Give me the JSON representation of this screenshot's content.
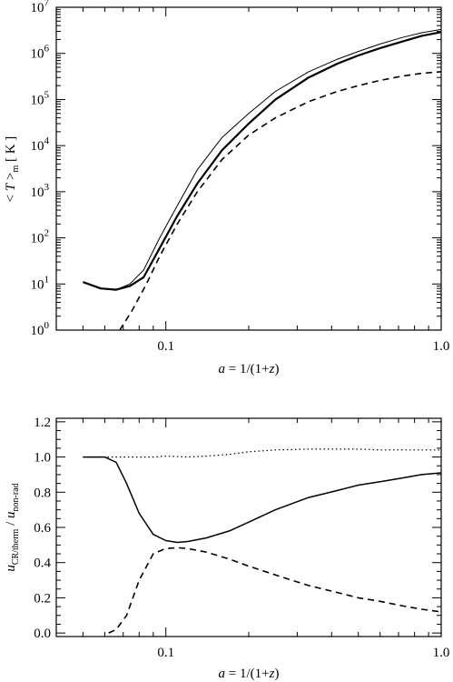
{
  "chart_data": [
    {
      "type": "line",
      "title": "",
      "xlabel": "a = 1/(1+z)",
      "ylabel": "<T>m [ K ]",
      "xscale": "log",
      "yscale": "log",
      "xlim": [
        0.04,
        1.0
      ],
      "ylim": [
        1,
        10000000
      ],
      "xticks": [
        0.1,
        1.0
      ],
      "xtick_labels": [
        "0.1",
        "1.0"
      ],
      "yticks": [
        1,
        10,
        100,
        1000,
        10000,
        100000,
        1000000,
        10000000
      ],
      "ytick_exponents": [
        "0",
        "1",
        "2",
        "3",
        "4",
        "5",
        "6",
        "7"
      ],
      "grid": false,
      "series": [
        {
          "style": "solid-thin",
          "x": [
            0.05,
            0.058,
            0.066,
            0.074,
            0.083,
            0.095,
            0.11,
            0.13,
            0.16,
            0.2,
            0.25,
            0.33,
            0.42,
            0.5,
            0.6,
            0.72,
            0.85,
            1.0
          ],
          "y": [
            11,
            8,
            7.5,
            10,
            20,
            100,
            500,
            3000,
            15000,
            50000,
            150000,
            400000,
            750000,
            1100000,
            1600000,
            2200000,
            2800000,
            3300000
          ]
        },
        {
          "style": "solid-thick",
          "x": [
            0.05,
            0.058,
            0.066,
            0.074,
            0.083,
            0.095,
            0.11,
            0.13,
            0.16,
            0.2,
            0.25,
            0.33,
            0.42,
            0.5,
            0.6,
            0.72,
            0.85,
            1.0
          ],
          "y": [
            11,
            8,
            7.5,
            9,
            14,
            60,
            300,
            1500,
            8000,
            30000,
            100000,
            300000,
            600000,
            900000,
            1300000,
            1800000,
            2400000,
            2900000
          ]
        },
        {
          "style": "dashed",
          "x": [
            0.068,
            0.075,
            0.085,
            0.095,
            0.11,
            0.13,
            0.16,
            0.2,
            0.25,
            0.33,
            0.42,
            0.5,
            0.6,
            0.72,
            0.85,
            1.0
          ],
          "y": [
            1,
            2.5,
            10,
            40,
            200,
            1000,
            5000,
            17000,
            40000,
            90000,
            150000,
            200000,
            260000,
            320000,
            370000,
            400000
          ]
        }
      ]
    },
    {
      "type": "line",
      "title": "",
      "xlabel": "a = 1/(1+z)",
      "ylabel": "uCR/therm / unon-rad",
      "xscale": "log",
      "yscale": "linear",
      "xlim": [
        0.04,
        1.0
      ],
      "ylim": [
        -0.02,
        1.22
      ],
      "xticks": [
        0.1,
        1.0
      ],
      "xtick_labels": [
        "0.1",
        "1.0"
      ],
      "yticks": [
        0.0,
        0.2,
        0.4,
        0.6,
        0.8,
        1.0,
        1.2
      ],
      "ytick_labels": [
        "0.0",
        "0.2",
        "0.4",
        "0.6",
        "0.8",
        "1.0",
        "1.2"
      ],
      "grid": false,
      "series": [
        {
          "style": "dotted",
          "x": [
            0.05,
            0.06,
            0.07,
            0.08,
            0.09,
            0.1,
            0.12,
            0.14,
            0.17,
            0.2,
            0.25,
            0.33,
            0.42,
            0.5,
            0.6,
            0.72,
            0.85,
            1.0
          ],
          "y": [
            1.0,
            1.0,
            1.0,
            1.0,
            1.0,
            1.005,
            1.0,
            1.005,
            1.015,
            1.03,
            1.04,
            1.045,
            1.045,
            1.045,
            1.04,
            1.04,
            1.04,
            1.04
          ]
        },
        {
          "style": "solid",
          "x": [
            0.05,
            0.06,
            0.066,
            0.072,
            0.08,
            0.09,
            0.1,
            0.11,
            0.12,
            0.14,
            0.17,
            0.2,
            0.25,
            0.33,
            0.42,
            0.5,
            0.6,
            0.72,
            0.85,
            1.0
          ],
          "y": [
            1.0,
            1.0,
            0.97,
            0.85,
            0.68,
            0.56,
            0.525,
            0.515,
            0.52,
            0.54,
            0.58,
            0.63,
            0.7,
            0.77,
            0.81,
            0.84,
            0.86,
            0.88,
            0.9,
            0.91
          ]
        },
        {
          "style": "dashed",
          "x": [
            0.062,
            0.066,
            0.072,
            0.08,
            0.09,
            0.1,
            0.11,
            0.12,
            0.14,
            0.17,
            0.2,
            0.25,
            0.33,
            0.42,
            0.5,
            0.6,
            0.72,
            0.85,
            1.0
          ],
          "y": [
            0.0,
            0.02,
            0.1,
            0.3,
            0.45,
            0.48,
            0.485,
            0.48,
            0.46,
            0.42,
            0.38,
            0.33,
            0.27,
            0.23,
            0.2,
            0.18,
            0.155,
            0.135,
            0.12
          ]
        }
      ]
    }
  ]
}
